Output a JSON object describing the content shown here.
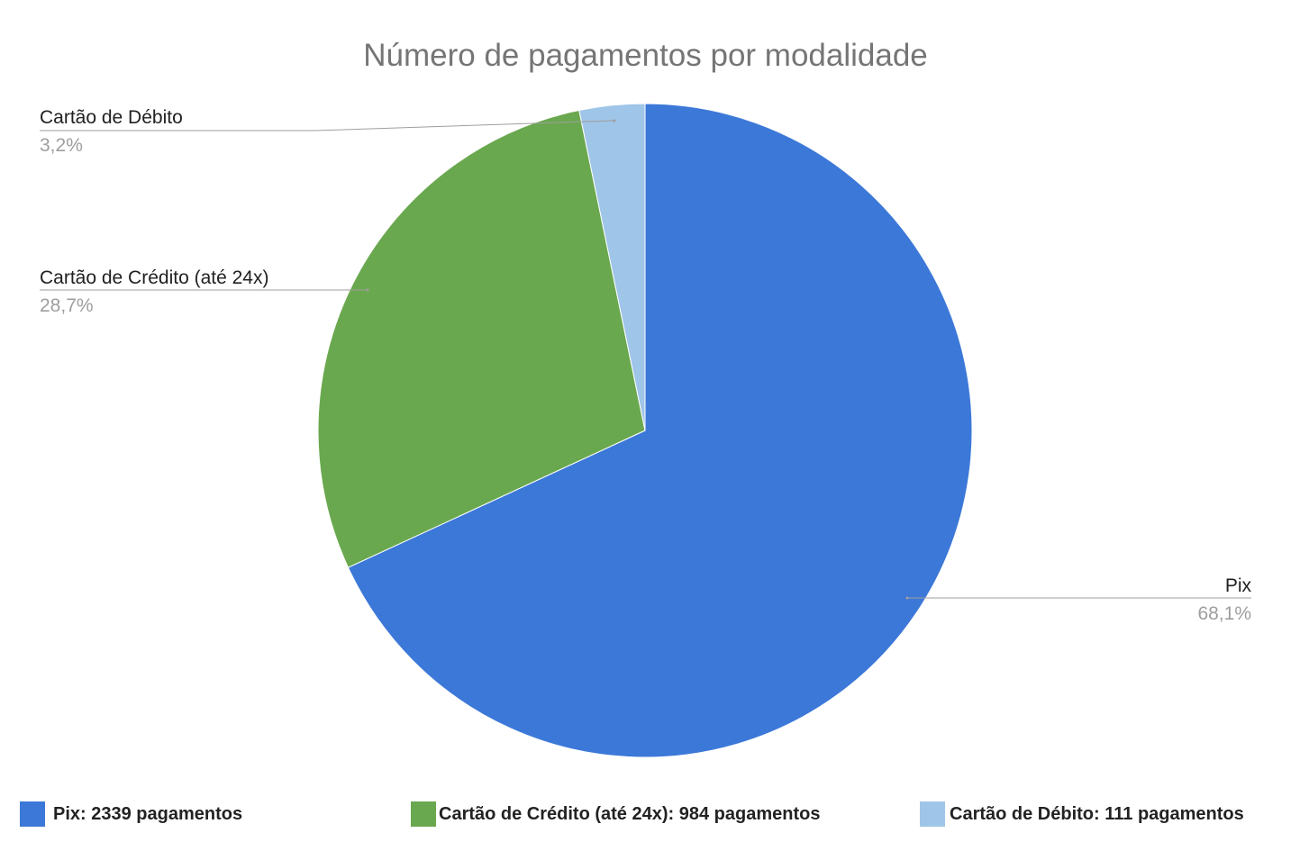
{
  "chart_data": {
    "type": "pie",
    "title": "Número de pagamentos por modalidade",
    "start_angle_deg": 0,
    "direction": "clockwise",
    "slices": [
      {
        "name": "Pix",
        "value": 2339,
        "percent_label": "68,1%",
        "legend_label": "Pix: 2339 pagamentos",
        "color": "#3c78d8"
      },
      {
        "name": "Cartão de Crédito (até 24x)",
        "value": 984,
        "percent_label": "28,7%",
        "legend_label": "Cartão de Crédito (até 24x): 984 pagamentos",
        "color": "#6aa84f"
      },
      {
        "name": "Cartão de Débito",
        "value": 111,
        "percent_label": "3,2%",
        "legend_label": "Cartão de Débito: 111 pagamentos",
        "color": "#9fc5e8"
      }
    ],
    "legend_position": "bottom",
    "label_name_color": "#212121",
    "label_percent_color": "#9e9e9e",
    "leader_line_color": "#9e9e9e"
  }
}
